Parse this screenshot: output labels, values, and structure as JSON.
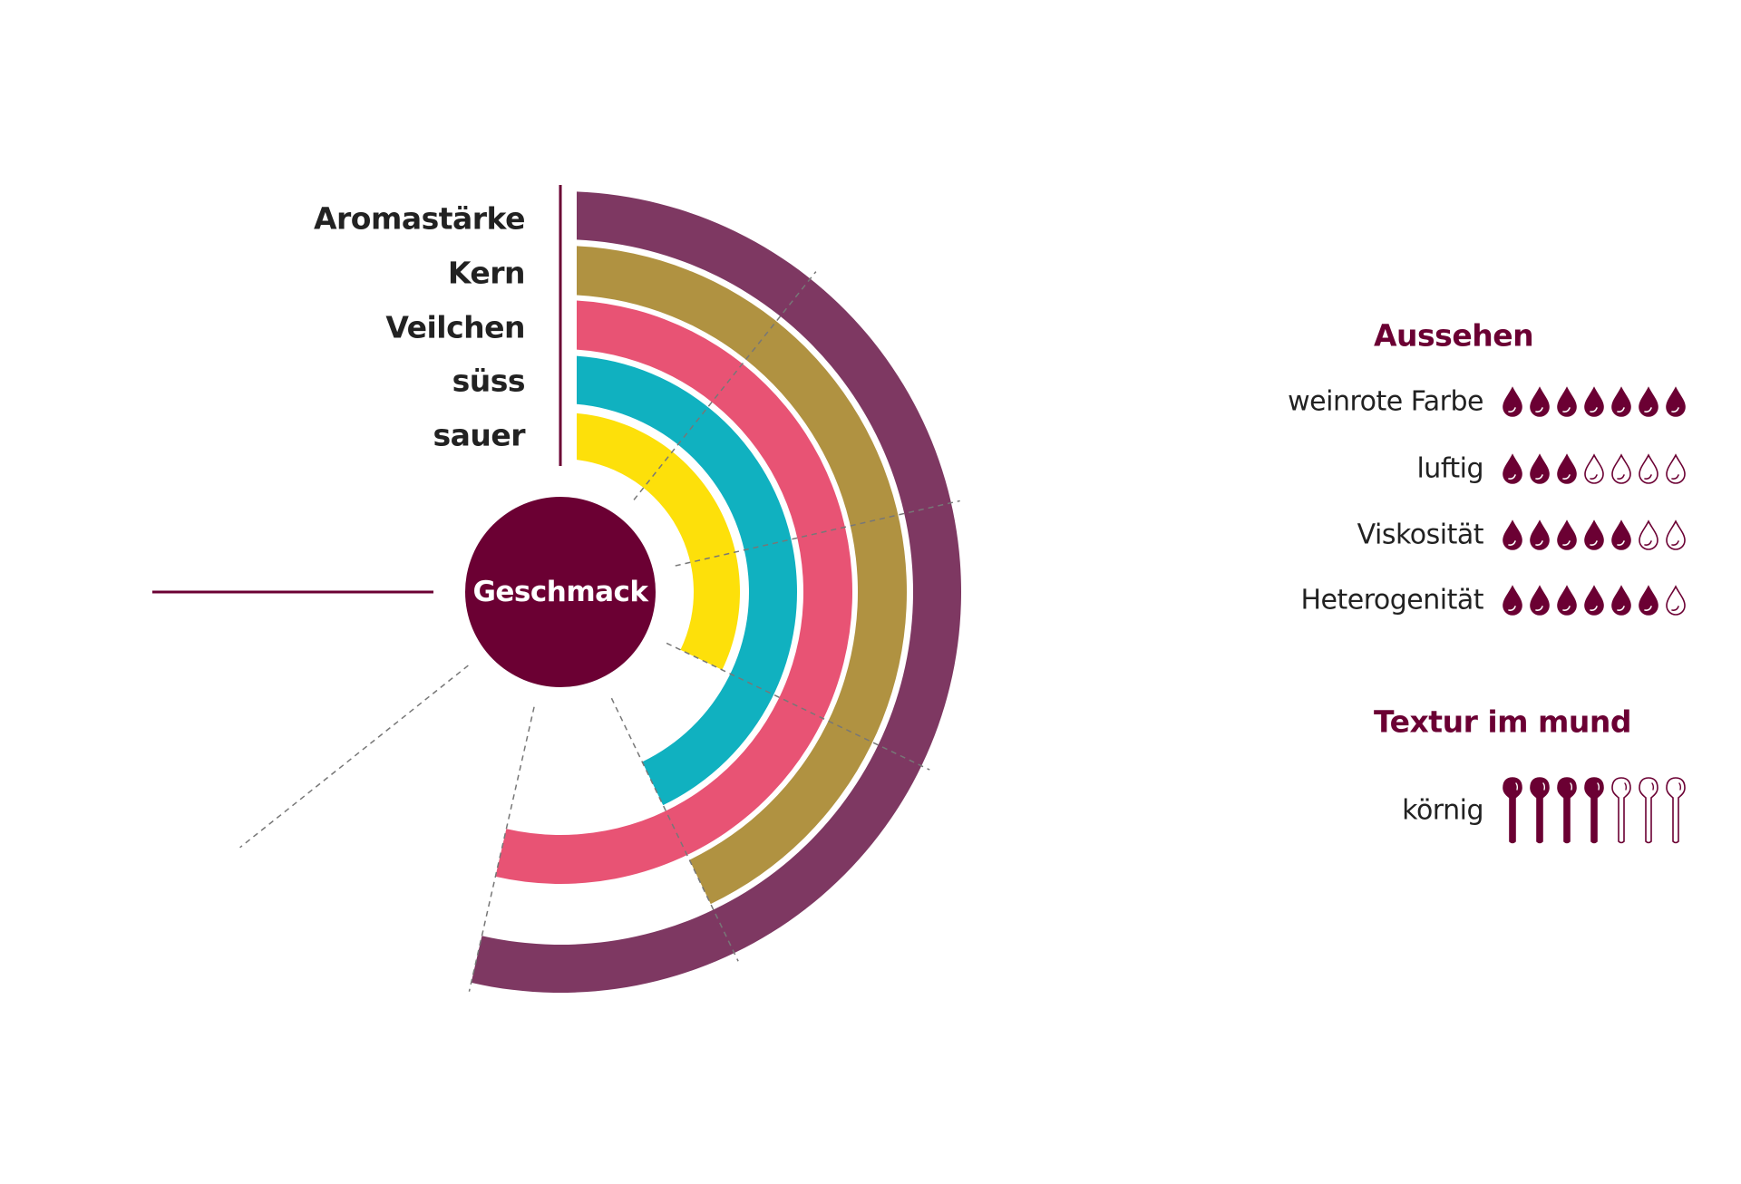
{
  "colors": {
    "accent": "#6b0033",
    "text": "#222222"
  },
  "chart_data": {
    "type": "radial-bar",
    "center_label": "Geschmack",
    "scale_max": 7,
    "sweep_degrees": 270,
    "gridlines": "dashed radial lines at each scale step",
    "categories": [
      "Aromastärke",
      "Kern",
      "Veilchen",
      "süss",
      "sauer"
    ],
    "values": [
      5,
      4,
      5,
      4,
      3
    ],
    "colors": [
      "#7e3862",
      "#b09241",
      "#e85374",
      "#10b1c0",
      "#fde00a"
    ]
  },
  "aussehen": {
    "title": "Aussehen",
    "icon": "drop-icon",
    "max": 7,
    "rows": [
      {
        "label": "weinrote Farbe",
        "value": 7
      },
      {
        "label": "luftig",
        "value": 3
      },
      {
        "label": "Viskosität",
        "value": 5
      },
      {
        "label": "Heterogenität",
        "value": 6
      }
    ]
  },
  "textur": {
    "title": "Textur im mund",
    "icon": "spoon-icon",
    "max": 7,
    "rows": [
      {
        "label": "körnig",
        "value": 4
      }
    ]
  }
}
